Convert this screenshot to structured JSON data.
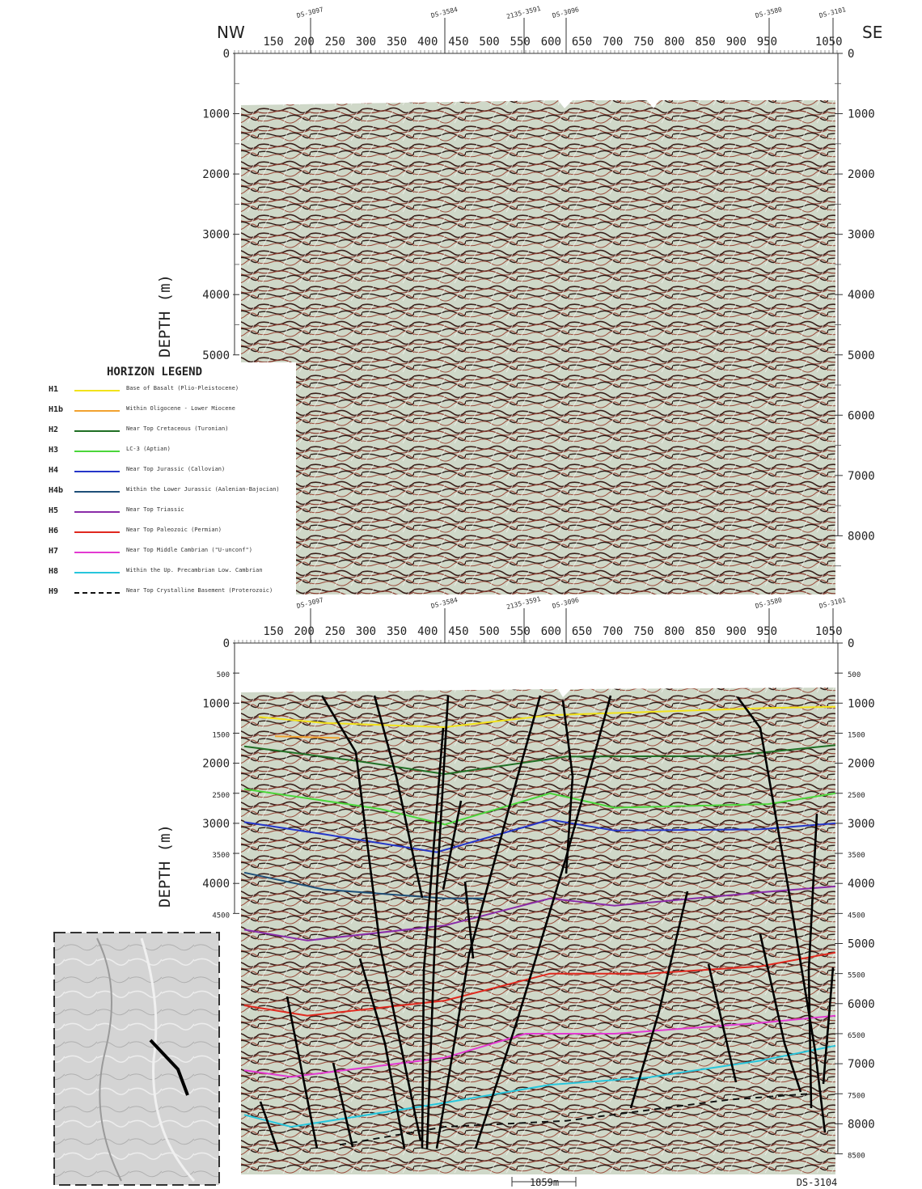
{
  "top_panel": {
    "left_direction": "NW",
    "right_direction": "SE",
    "y_axis_label": "DEPTH (m)",
    "traces": [
      "150",
      "200",
      "250",
      "300",
      "350",
      "400",
      "450",
      "500",
      "550",
      "600",
      "650",
      "700",
      "750",
      "800",
      "850",
      "900",
      "950",
      "1050"
    ],
    "wells": [
      "DS-3097",
      "DS-3584",
      "2135-3591",
      "DS-3096",
      "DS-3580",
      "DS-3101"
    ],
    "depth_major": [
      "0",
      "1000",
      "2000",
      "3000",
      "4000",
      "5000",
      "6000",
      "7000",
      "8000"
    ]
  },
  "bottom_panel": {
    "y_axis_label": "DEPTH (m)",
    "traces": [
      "150",
      "200",
      "250",
      "300",
      "350",
      "400",
      "450",
      "500",
      "550",
      "600",
      "650",
      "700",
      "750",
      "800",
      "850",
      "900",
      "950",
      "1050"
    ],
    "wells": [
      "DS-3097",
      "DS-3584",
      "2135-3591",
      "DS-3096",
      "DS-3580",
      "DS-3101"
    ],
    "depth_left": [
      "0",
      "500",
      "1000",
      "1500",
      "2000",
      "2500",
      "3000",
      "3500",
      "4000",
      "4500"
    ],
    "depth_right": [
      "0",
      "500",
      "1000",
      "1500",
      "2000",
      "2500",
      "3000",
      "3500",
      "4000",
      "4500",
      "5000",
      "5500",
      "6000",
      "6500",
      "7000",
      "7500",
      "8000",
      "8500"
    ],
    "scale_bar": "1859m",
    "bottom_well": "DS-3104"
  },
  "legend": {
    "title": "HORIZON LEGEND",
    "items": [
      {
        "code": "H1",
        "color": "#f2e31b",
        "dashed": false,
        "label": "Base of Basalt (Plio-Pleistocene)"
      },
      {
        "code": "H1b",
        "color": "#f2a230",
        "dashed": false,
        "label": "Within Oligocene - Lower Miocene"
      },
      {
        "code": "H2",
        "color": "#1f6e23",
        "dashed": false,
        "label": "Near Top Cretaceous (Turonian)"
      },
      {
        "code": "H3",
        "color": "#4bd63a",
        "dashed": false,
        "label": "LC-3 (Aptian)"
      },
      {
        "code": "H4",
        "color": "#2536c9",
        "dashed": false,
        "label": "Near Top Jurassic (Callovian)"
      },
      {
        "code": "H4b",
        "color": "#1f4f78",
        "dashed": false,
        "label": "Within the Lower Jurassic (Aalenian-Bajocian)"
      },
      {
        "code": "H5",
        "color": "#8a2ca8",
        "dashed": false,
        "label": "Near Top Triassic"
      },
      {
        "code": "H6",
        "color": "#e0281e",
        "dashed": false,
        "label": "Near Top Paleozoic (Permian)"
      },
      {
        "code": "H7",
        "color": "#e33ad2",
        "dashed": false,
        "label": "Near Top Middle Cambrian (\"U-unconf\")"
      },
      {
        "code": "H8",
        "color": "#27c6dc",
        "dashed": false,
        "label": "Within the Up. Precambrian Low. Cambrian"
      },
      {
        "code": "H9",
        "color": "#111111",
        "dashed": true,
        "label": "Near Top Crystalline Basement (Proterozoic)"
      }
    ]
  },
  "colors": {
    "seismic_background": "#cfd8c8",
    "reflector_dark": "#3a1f1a",
    "reflector_red": "#8a3b2e",
    "fault": "#000000"
  }
}
